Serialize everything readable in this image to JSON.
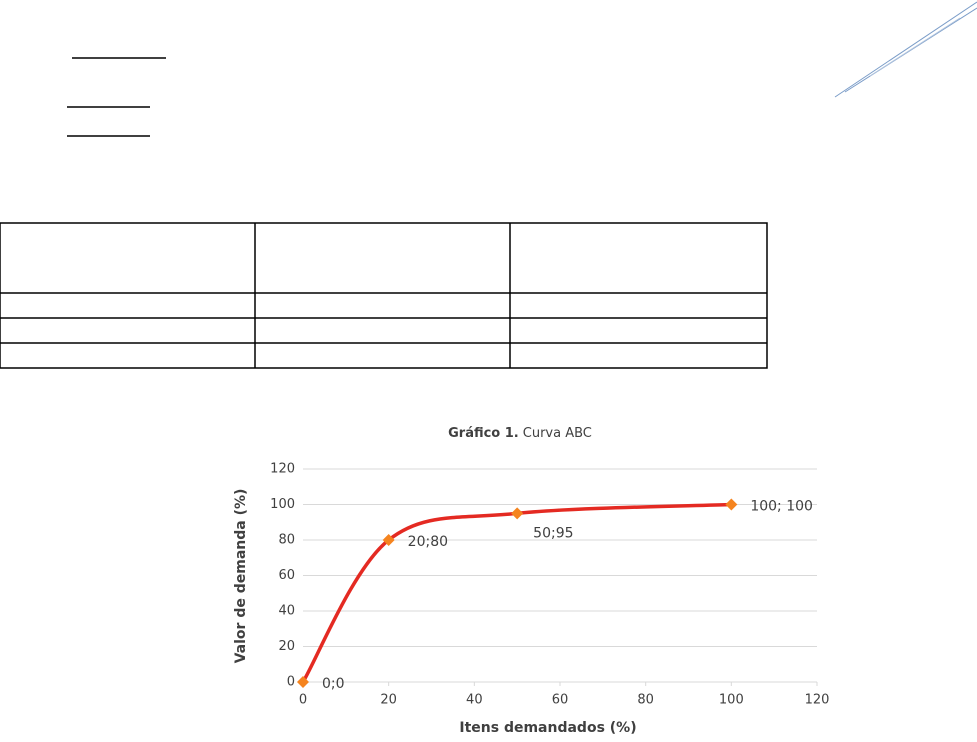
{
  "chart_data": {
    "type": "line",
    "title_prefix": "Gráfico 1.",
    "title": "Curva ABC",
    "x_label": "Itens demandados (%)",
    "y_label": "Valor de demanda (%)",
    "x": [
      0,
      20,
      50,
      100
    ],
    "values": [
      0,
      80,
      95,
      100
    ],
    "value_labels": [
      "0;0",
      "20;80",
      "50;95",
      "100; 100"
    ],
    "color": "#e42a22",
    "marker_color": "#f5841f",
    "smooth": true,
    "xlim": [
      0,
      120
    ],
    "xticks": [
      0,
      20,
      40,
      60,
      80,
      100,
      120
    ],
    "ylim": [
      0,
      120
    ],
    "yticks": [
      0,
      20,
      40,
      60,
      80,
      100,
      120
    ],
    "grid": true
  }
}
